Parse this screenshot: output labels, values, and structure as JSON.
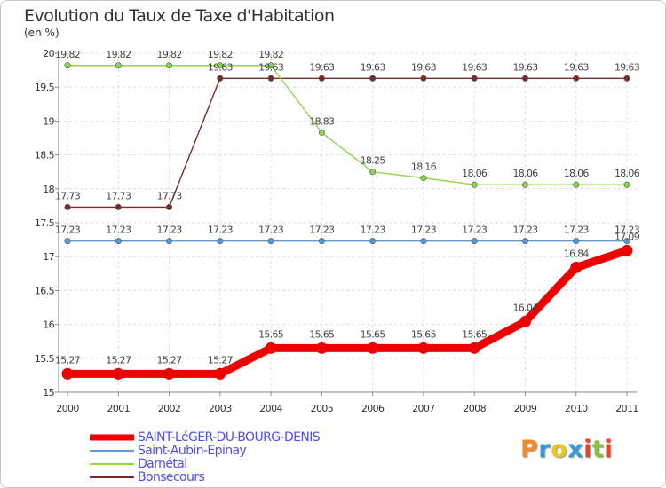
{
  "title": "Evolution du Taux de Taxe d'Habitation",
  "unit_label": "(en %)",
  "brand": {
    "text": "Proxiti",
    "colors": [
      "#f08a2a",
      "#3a9bd8",
      "#e8c820",
      "#3a9bd8",
      "#e8432a",
      "#88c040",
      "#e8432a"
    ]
  },
  "chart_data": {
    "type": "line",
    "x": [
      "2000",
      "2001",
      "2002",
      "2003",
      "2004",
      "2005",
      "2006",
      "2007",
      "2008",
      "2009",
      "2010",
      "2011"
    ],
    "ylim": [
      15,
      20
    ],
    "yticks": [
      "15",
      "15.5",
      "16",
      "16.5",
      "17",
      "17.5",
      "18",
      "18.5",
      "19",
      "19.5",
      "20"
    ],
    "grid": true,
    "series": [
      {
        "name": "SAINT-LéGER-DU-BOURG-DENIS",
        "color": "#ee0000",
        "thick": true,
        "values": [
          15.27,
          15.27,
          15.27,
          15.27,
          15.65,
          15.65,
          15.65,
          15.65,
          15.65,
          16.04,
          16.84,
          17.09
        ],
        "labels": [
          "15.27",
          "15.27",
          "15.27",
          "15.27",
          "15.65",
          "15.65",
          "15.65",
          "15.65",
          "15.65",
          "16.04",
          "16.84",
          "17.09"
        ]
      },
      {
        "name": "Saint-Aubin-Epinay",
        "color": "#5b9bd5",
        "thick": false,
        "values": [
          17.23,
          17.23,
          17.23,
          17.23,
          17.23,
          17.23,
          17.23,
          17.23,
          17.23,
          17.23,
          17.23,
          17.23
        ],
        "labels": [
          "17.23",
          "17.23",
          "17.23",
          "17.23",
          "17.23",
          "17.23",
          "17.23",
          "17.23",
          "17.23",
          "17.23",
          "17.23",
          "17.23"
        ]
      },
      {
        "name": "Darnétal",
        "color": "#8fd44f",
        "thick": false,
        "values": [
          19.82,
          19.82,
          19.82,
          19.82,
          19.82,
          18.83,
          18.25,
          18.16,
          18.06,
          18.06,
          18.06,
          18.06
        ],
        "labels": [
          "19.82",
          "19.82",
          "19.82",
          "19.82",
          "19.82",
          "18.83",
          "18.25",
          "18.16",
          "18.06",
          "18.06",
          "18.06",
          "18.06"
        ]
      },
      {
        "name": "Bonsecours",
        "color": "#7a2a2a",
        "thick": false,
        "values": [
          17.73,
          17.73,
          17.73,
          19.63,
          19.63,
          19.63,
          19.63,
          19.63,
          19.63,
          19.63,
          19.63,
          19.63
        ],
        "labels": [
          "17.73",
          "17.73",
          "17.73",
          "19.63",
          "19.63",
          "19.63",
          "19.63",
          "19.63",
          "19.63",
          "19.63",
          "19.63",
          "19.63"
        ]
      }
    ],
    "legend": [
      "SAINT-LéGER-DU-BOURG-DENIS",
      "Saint-Aubin-Epinay",
      "Darnétal",
      "Bonsecours"
    ]
  }
}
